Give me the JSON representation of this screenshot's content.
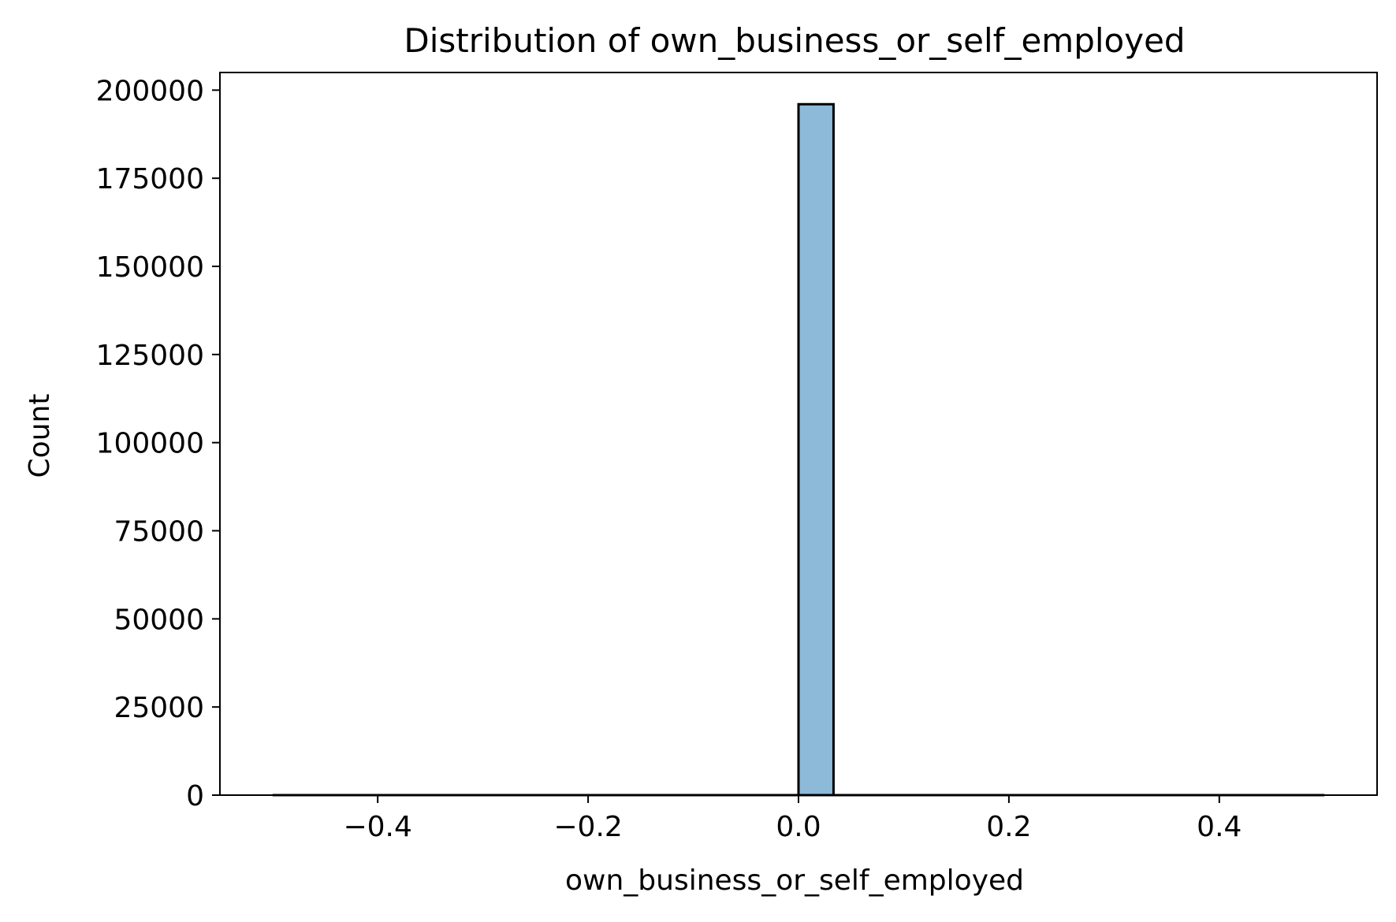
{
  "chart_data": {
    "type": "bar",
    "title": "Distribution of own_business_or_self_employed",
    "xlabel": "own_business_or_self_employed",
    "ylabel": "Count",
    "xlim": [
      -0.55,
      0.55
    ],
    "ylim": [
      0,
      205000
    ],
    "x_ticks": [
      -0.4,
      -0.2,
      0.0,
      0.2,
      0.4
    ],
    "x_tick_labels": [
      "−0.4",
      "−0.2",
      "0.0",
      "0.2",
      "0.4"
    ],
    "y_ticks": [
      0,
      25000,
      50000,
      75000,
      100000,
      125000,
      150000,
      175000,
      200000
    ],
    "y_tick_labels": [
      "0",
      "25000",
      "50000",
      "75000",
      "100000",
      "125000",
      "150000",
      "175000",
      "200000"
    ],
    "bin_range": [
      -0.5,
      0.5
    ],
    "bins": [
      {
        "x0": 0.0,
        "x1": 0.0333,
        "count": 196000
      }
    ],
    "bar_color": "#8dbad8",
    "edge_color": "#000000",
    "grid": false
  }
}
